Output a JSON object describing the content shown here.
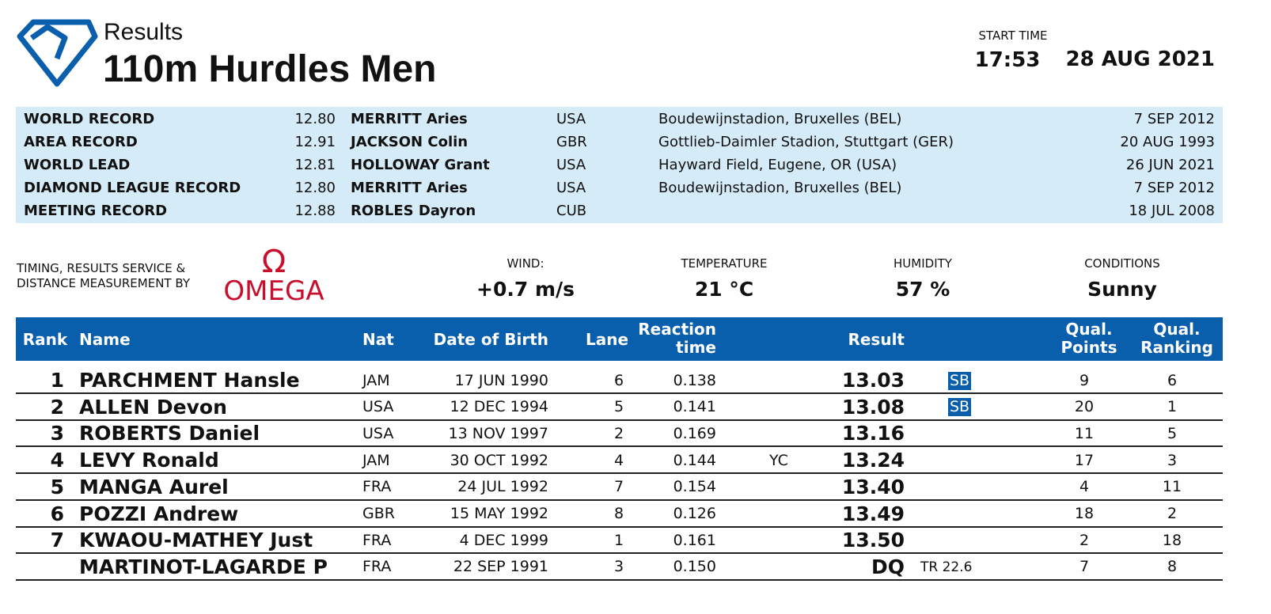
{
  "header": {
    "subtitle": "Results",
    "title": "110m Hurdles Men",
    "start_time_label": "START TIME",
    "start_time": "17:53",
    "date": "28 AUG 2021"
  },
  "records": [
    {
      "label": "WORLD RECORD",
      "value": "12.80",
      "name": "MERRITT Aries",
      "nat": "USA",
      "venue": "Boudewijnstadion, Bruxelles (BEL)",
      "date": "7 SEP 2012"
    },
    {
      "label": "AREA RECORD",
      "value": "12.91",
      "name": "JACKSON Colin",
      "nat": "GBR",
      "venue": "Gottlieb-Daimler Stadion, Stuttgart (GER)",
      "date": "20 AUG 1993"
    },
    {
      "label": "WORLD LEAD",
      "value": "12.81",
      "name": "HOLLOWAY Grant",
      "nat": "USA",
      "venue": "Hayward Field, Eugene, OR (USA)",
      "date": "26 JUN 2021"
    },
    {
      "label": "DIAMOND LEAGUE RECORD",
      "value": "12.80",
      "name": "MERRITT Aries",
      "nat": "USA",
      "venue": "Boudewijnstadion, Bruxelles (BEL)",
      "date": "7 SEP 2012"
    },
    {
      "label": "MEETING RECORD",
      "value": "12.88",
      "name": "ROBLES Dayron",
      "nat": "CUB",
      "date": "18 JUL 2008"
    }
  ],
  "conditions": {
    "timing": [
      "TIMING, RESULTS SERVICE &",
      "DISTANCE MEASUREMENT BY"
    ],
    "logo_symbol": "Ω",
    "logo": "OMEGA",
    "items": [
      {
        "label": "WIND:",
        "value": "+0.7 m/s"
      },
      {
        "label": "TEMPERATURE",
        "value": "21 °C"
      },
      {
        "label": "HUMIDITY",
        "value": "57 %"
      },
      {
        "label": "CONDITIONS",
        "value": "Sunny"
      }
    ]
  },
  "table": {
    "columns": {
      "rank": "Rank",
      "name": "Name",
      "nat": "Nat",
      "dob": "Date of Birth",
      "lane": "Lane",
      "reaction": "Reaction time",
      "result": "Result",
      "points": "Qual. Points",
      "ranking": "Qual. Ranking"
    },
    "rows": [
      {
        "rank": "1",
        "name": "PARCHMENT Hansle",
        "nat": "JAM",
        "dob": "17 JUN 1990",
        "lane": "6",
        "reaction": "0.138",
        "result": "13.03",
        "badge": "SB",
        "points": "9",
        "ranking": "6"
      },
      {
        "rank": "2",
        "name": "ALLEN Devon",
        "nat": "USA",
        "dob": "12 DEC 1994",
        "lane": "5",
        "reaction": "0.141",
        "result": "13.08",
        "badge": "SB",
        "points": "20",
        "ranking": "1"
      },
      {
        "rank": "3",
        "name": "ROBERTS Daniel",
        "nat": "USA",
        "dob": "13 NOV 1997",
        "lane": "2",
        "reaction": "0.169",
        "result": "13.16",
        "points": "11",
        "ranking": "5"
      },
      {
        "rank": "4",
        "name": "LEVY Ronald",
        "nat": "JAM",
        "dob": "30 OCT 1992",
        "lane": "4",
        "reaction": "0.144",
        "card": "YC",
        "result": "13.24",
        "points": "17",
        "ranking": "3"
      },
      {
        "rank": "5",
        "name": "MANGA Aurel",
        "nat": "FRA",
        "dob": "24 JUL 1992",
        "lane": "7",
        "reaction": "0.154",
        "result": "13.40",
        "points": "4",
        "ranking": "11"
      },
      {
        "rank": "6",
        "name": "POZZI Andrew",
        "nat": "GBR",
        "dob": "15 MAY 1992",
        "lane": "8",
        "reaction": "0.126",
        "result": "13.49",
        "points": "18",
        "ranking": "2"
      },
      {
        "rank": "7",
        "name": "KWAOU-MATHEY Just",
        "nat": "FRA",
        "dob": "4 DEC 1999",
        "lane": "1",
        "reaction": "0.161",
        "result": "13.50",
        "points": "2",
        "ranking": "18"
      },
      {
        "name": "MARTINOT-LAGARDE P",
        "nat": "FRA",
        "dob": "22 SEP 1991",
        "lane": "3",
        "reaction": "0.150",
        "result": "DQ",
        "rule": "TR 22.6",
        "points": "7",
        "ranking": "8"
      }
    ]
  }
}
